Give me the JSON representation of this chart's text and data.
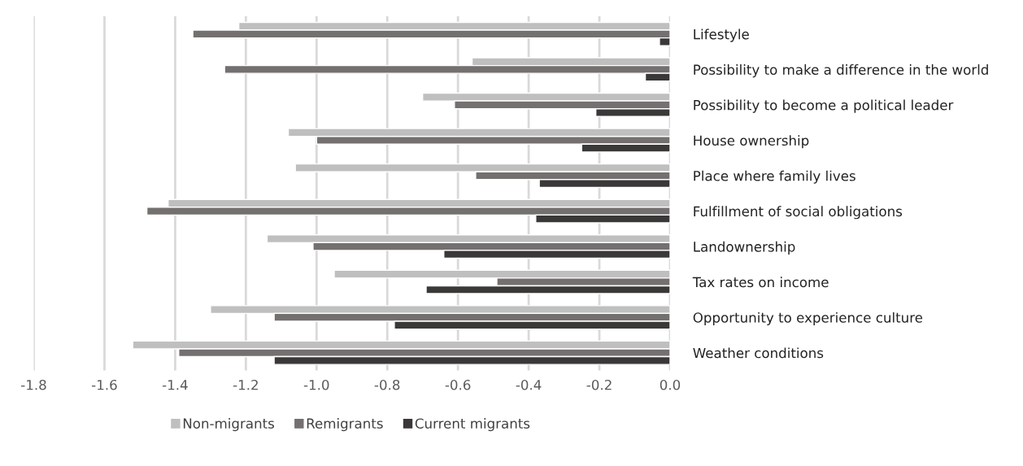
{
  "chart_data": {
    "type": "bar",
    "orientation": "horizontal",
    "categories": [
      "Lifestyle",
      "Possibility to make a difference in the world",
      "Possibility to become a political leader",
      "House ownership",
      "Place where family lives",
      "Fulfillment of social obligations",
      "Landownership",
      "Tax rates on income",
      "Opportunity to experience culture",
      "Weather conditions"
    ],
    "series": [
      {
        "name": "Non-migrants",
        "color": "#bfbfbf",
        "values": [
          -1.22,
          -0.56,
          -0.7,
          -1.08,
          -1.06,
          -1.42,
          -1.14,
          -0.95,
          -1.3,
          -1.52
        ]
      },
      {
        "name": "Remigrants",
        "color": "#747070",
        "values": [
          -1.35,
          -1.26,
          -0.61,
          -1.0,
          -0.55,
          -1.48,
          -1.01,
          -0.49,
          -1.12,
          -1.39
        ]
      },
      {
        "name": "Current migrants",
        "color": "#3b3838",
        "values": [
          -0.03,
          -0.07,
          -0.21,
          -0.25,
          -0.37,
          -0.38,
          -0.64,
          -0.69,
          -0.78,
          -1.12
        ]
      }
    ],
    "xlim": [
      -1.8,
      0.0
    ],
    "xticks": [
      {
        "value": -1.8,
        "label": "-1.8"
      },
      {
        "value": -1.6,
        "label": "-1.6"
      },
      {
        "value": -1.4,
        "label": "-1.4"
      },
      {
        "value": -1.2,
        "label": "-1.2"
      },
      {
        "value": -1.0,
        "label": "-1.0"
      },
      {
        "value": -0.8,
        "label": "-0.8"
      },
      {
        "value": -0.6,
        "label": "-0.6"
      },
      {
        "value": -0.4,
        "label": "-0.4"
      },
      {
        "value": -0.2,
        "label": "-0.2"
      },
      {
        "value": 0.0,
        "label": "0.0"
      }
    ],
    "grid": "x",
    "legend": "bottom"
  }
}
